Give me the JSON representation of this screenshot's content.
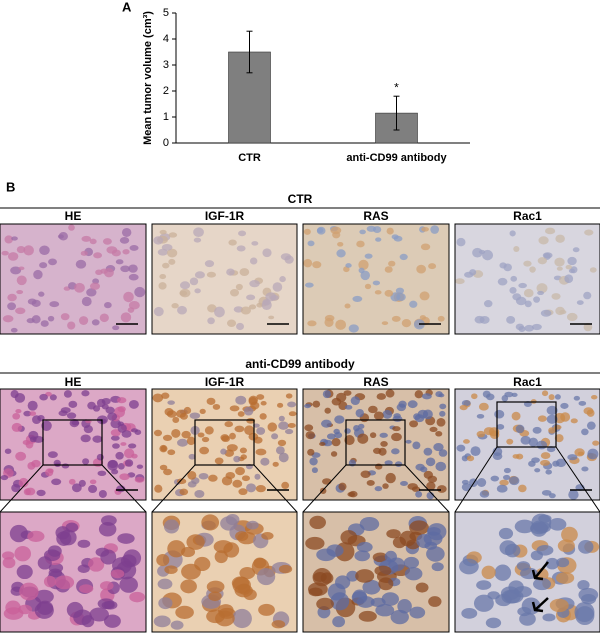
{
  "chart_data": {
    "type": "bar",
    "panel_label": "A",
    "y_label": "Mean tumor volume (cm³)",
    "categories": [
      "CTR",
      "anti-CD99 antibody"
    ],
    "values": [
      3.5,
      1.15
    ],
    "errors": [
      0.8,
      0.65
    ],
    "significance_marks": [
      null,
      "*"
    ],
    "color": "#7f7f7f",
    "ylim": [
      0,
      5
    ],
    "yticks": [
      0,
      1,
      2,
      3,
      4,
      5
    ]
  },
  "figure_b": {
    "panel_label": "B",
    "groups": [
      {
        "title": "CTR",
        "columns": [
          "HE",
          "IGF-1R",
          "RAS",
          "Rac1"
        ]
      },
      {
        "title": "anti-CD99 antibody",
        "columns": [
          "HE",
          "IGF-1R",
          "RAS",
          "Rac1"
        ]
      }
    ]
  }
}
